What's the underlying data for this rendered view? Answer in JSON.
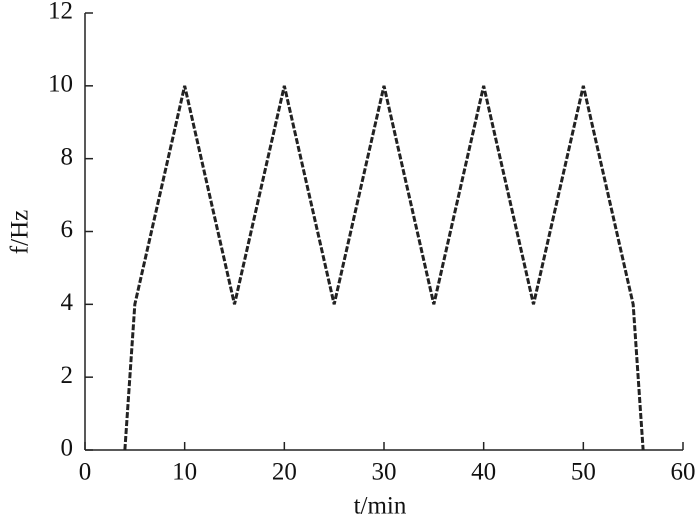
{
  "chart_data": {
    "type": "line",
    "x_label": "t/min",
    "y_label": "f/Hz",
    "x": [
      4,
      5,
      10,
      15,
      20,
      25,
      30,
      35,
      40,
      45,
      50,
      55,
      56
    ],
    "series": [
      {
        "color": "#222222",
        "values": [
          0,
          4,
          10,
          4,
          10,
          4,
          10,
          4,
          10,
          4,
          10,
          4,
          0
        ]
      }
    ],
    "xlim": [
      0,
      60
    ],
    "xticks": [
      0,
      10,
      20,
      30,
      40,
      50,
      60
    ],
    "ylim": [
      0,
      12
    ],
    "yticks": [
      0,
      2,
      4,
      6,
      8,
      10,
      12
    ]
  }
}
